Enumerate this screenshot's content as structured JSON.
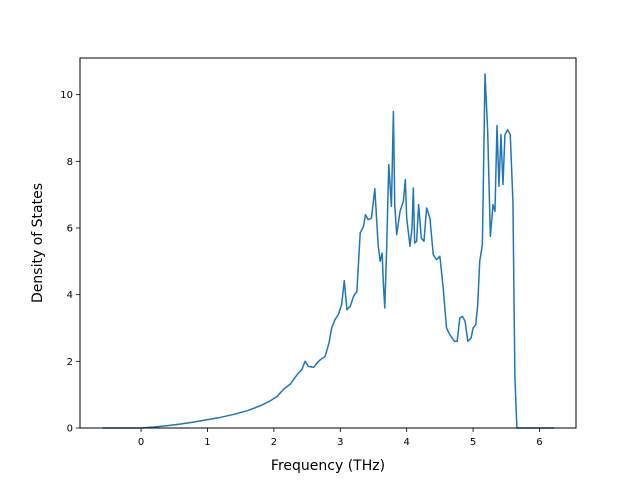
{
  "chart_data": {
    "type": "line",
    "title": "",
    "xlabel": "Frequency (THz)",
    "ylabel": "Density of States",
    "xlim": [
      -0.92,
      6.55
    ],
    "ylim": [
      0,
      11.1
    ],
    "x_ticks": [
      0,
      1,
      2,
      3,
      4,
      5,
      6
    ],
    "y_ticks": [
      0,
      2,
      4,
      6,
      8,
      10
    ],
    "grid": false,
    "legend": "none",
    "series": [
      {
        "color": "#1f77b4",
        "x": [
          -0.58,
          -0.3,
          0.0,
          0.2,
          0.4,
          0.6,
          0.8,
          1.0,
          1.2,
          1.4,
          1.6,
          1.8,
          1.95,
          2.05,
          2.15,
          2.25,
          2.32,
          2.37,
          2.42,
          2.47,
          2.52,
          2.6,
          2.65,
          2.7,
          2.77,
          2.83,
          2.87,
          2.92,
          2.97,
          3.02,
          3.06,
          3.1,
          3.15,
          3.2,
          3.25,
          3.3,
          3.35,
          3.38,
          3.42,
          3.47,
          3.52,
          3.57,
          3.6,
          3.63,
          3.65,
          3.67,
          3.7,
          3.73,
          3.77,
          3.8,
          3.82,
          3.85,
          3.9,
          3.95,
          3.98,
          4.0,
          4.05,
          4.08,
          4.1,
          4.12,
          4.15,
          4.18,
          4.22,
          4.26,
          4.3,
          4.35,
          4.4,
          4.45,
          4.5,
          4.55,
          4.6,
          4.65,
          4.72,
          4.76,
          4.8,
          4.84,
          4.88,
          4.92,
          4.97,
          5.0,
          5.04,
          5.07,
          5.1,
          5.14,
          5.18,
          5.22,
          5.26,
          5.3,
          5.33,
          5.36,
          5.39,
          5.42,
          5.45,
          5.48,
          5.52,
          5.56,
          5.6,
          5.63,
          5.66,
          5.7,
          5.75,
          5.9,
          6.05,
          6.22
        ],
        "y": [
          0.0,
          0.0,
          0.0,
          0.03,
          0.07,
          0.12,
          0.18,
          0.25,
          0.32,
          0.41,
          0.52,
          0.67,
          0.82,
          0.95,
          1.17,
          1.32,
          1.52,
          1.65,
          1.75,
          2.0,
          1.85,
          1.82,
          1.95,
          2.05,
          2.14,
          2.55,
          3.0,
          3.25,
          3.4,
          3.7,
          4.42,
          3.55,
          3.65,
          3.95,
          4.1,
          5.85,
          6.05,
          6.4,
          6.25,
          6.3,
          7.18,
          5.5,
          5.0,
          5.25,
          4.3,
          3.6,
          5.5,
          7.9,
          6.65,
          9.5,
          6.7,
          5.8,
          6.5,
          6.8,
          7.45,
          6.3,
          5.45,
          6.0,
          7.2,
          5.55,
          5.6,
          6.7,
          5.7,
          5.6,
          6.6,
          6.3,
          5.2,
          5.05,
          5.15,
          4.2,
          3.0,
          2.8,
          2.6,
          2.6,
          3.3,
          3.35,
          3.2,
          2.6,
          2.7,
          3.0,
          3.1,
          3.7,
          5.0,
          5.5,
          10.62,
          8.9,
          5.75,
          6.7,
          6.5,
          9.07,
          7.25,
          8.8,
          7.3,
          8.8,
          8.95,
          8.8,
          6.8,
          1.5,
          0.0,
          0.0,
          0.0,
          0.0,
          0.0,
          0.0
        ]
      }
    ]
  }
}
